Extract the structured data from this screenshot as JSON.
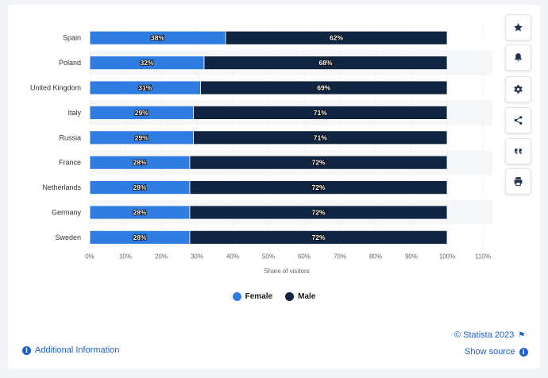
{
  "chart_data": {
    "type": "bar",
    "orientation": "horizontal",
    "stacked": true,
    "categories": [
      "Spain",
      "Poland",
      "United Kingdom",
      "Italy",
      "Russia",
      "France",
      "Netherlands",
      "Germany",
      "Sweden"
    ],
    "series": [
      {
        "name": "Female",
        "color": "#2f7de1",
        "values": [
          38,
          32,
          31,
          29,
          29,
          28,
          28,
          28,
          28
        ]
      },
      {
        "name": "Male",
        "color": "#0f2541",
        "values": [
          62,
          68,
          69,
          71,
          71,
          72,
          72,
          72,
          72
        ]
      }
    ],
    "xlabel": "Share of visitors",
    "xlim": [
      0,
      110
    ],
    "xticks": [
      "0%",
      "10%",
      "20%",
      "30%",
      "40%",
      "50%",
      "60%",
      "70%",
      "80%",
      "90%",
      "100%",
      "110%"
    ],
    "value_suffix": "%",
    "legend_position": "bottom"
  },
  "legend": {
    "female": "Female",
    "male": "Male"
  },
  "footer": {
    "copyright": "© Statista 2023",
    "additional_info": "Additional Information",
    "show_source": "Show source"
  },
  "toolbar_icons": [
    "star-icon",
    "bell-icon",
    "gear-icon",
    "share-icon",
    "quote-icon",
    "print-icon"
  ]
}
